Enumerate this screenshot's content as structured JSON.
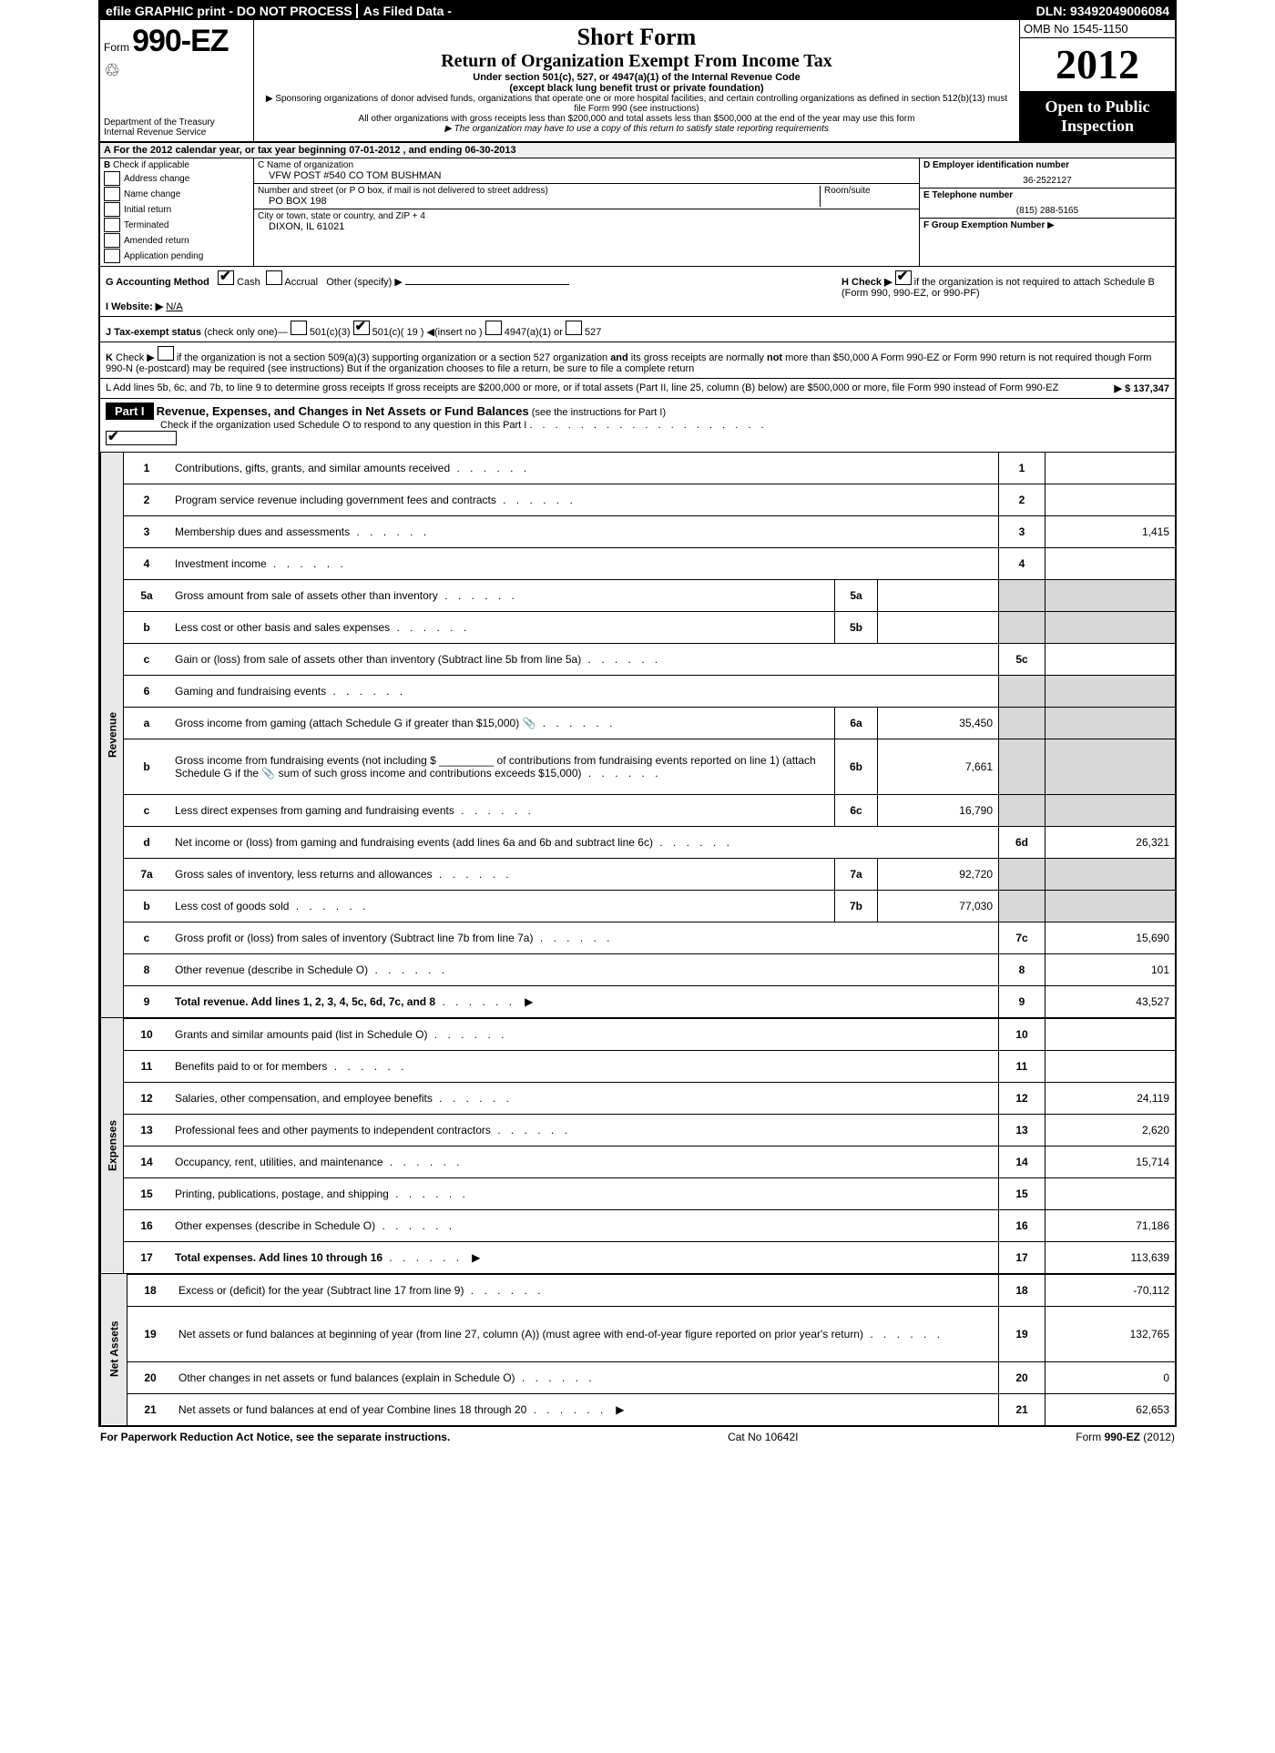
{
  "topbar": {
    "efile": "efile GRAPHIC print - DO NOT PROCESS",
    "asfiled": "As Filed Data -",
    "dln": "DLN: 93492049006084"
  },
  "header": {
    "form_prefix": "Form",
    "form_number": "990-EZ",
    "dept1": "Department of the Treasury",
    "dept2": "Internal Revenue Service",
    "short_form": "Short Form",
    "return_title": "Return of Organization Exempt From Income Tax",
    "sub1": "Under section 501(c), 527, or 4947(a)(1) of the Internal Revenue Code",
    "sub2": "(except black lung benefit trust or private foundation)",
    "sponsor_line": "▶ Sponsoring organizations of donor advised funds, organizations that operate one or more hospital facilities, and certain controlling organizations as defined in section 512(b)(13) must file Form 990 (see instructions)",
    "other_orgs": "All other organizations with gross receipts less than $200,000 and total assets less than $500,000 at the end of the year may use this form",
    "copy_note": "▶ The organization may have to use a copy of this return to satisfy state reporting requirements",
    "omb": "OMB No  1545-1150",
    "year": "2012",
    "open_public": "Open to Public Inspection"
  },
  "section_a": {
    "text_pre": "A  For the 2012 calendar year, or tax year beginning ",
    "begin": "07-01-2012",
    "text_mid": "              , and ending ",
    "end": "06-30-2013"
  },
  "col_b": {
    "title": "B",
    "check_if": "Check if applicable",
    "items": [
      "Address change",
      "Name change",
      "Initial return",
      "Terminated",
      "Amended return",
      "Application pending"
    ]
  },
  "col_c": {
    "c_label": "C Name of organization",
    "c_value": "VFW POST #540 CO TOM BUSHMAN",
    "street_label": "Number and street (or P  O  box, if mail is not delivered to street address)",
    "room_label": "Room/suite",
    "street_value": "PO BOX 198",
    "city_label": "City or town, state or country, and ZIP + 4",
    "city_value": "DIXON, IL  61021"
  },
  "col_def": {
    "d_label": "D Employer identification number",
    "d_value": "36-2522127",
    "e_label": "E Telephone number",
    "e_value": "(815) 288-5165",
    "f_label": "F Group Exemption Number",
    "f_arrow": "▶"
  },
  "row_g": {
    "g_label": "G Accounting Method",
    "cash": "Cash",
    "accrual": "Accrual",
    "other": "Other (specify) ▶",
    "h_text": "H  Check ▶",
    "h_rest": "if the organization is not required to attach Schedule B (Form 990, 990-EZ, or 990-PF)"
  },
  "row_i": {
    "label": "I Website: ▶",
    "value": "N/A"
  },
  "row_j": {
    "label": "J Tax-exempt status",
    "paren": "(check only one)—",
    "o1": "501(c)(3)",
    "o2": "501(c)( 19 )",
    "insert": "◀(insert no )",
    "o3": "4947(a)(1) or",
    "o4": "527"
  },
  "row_k": {
    "text": "K Check ▶  if the organization is not a section 509(a)(3) supporting organization or a section 527 organization and its gross receipts are normally not more than $50,000  A Form 990-EZ or Form 990 return is not required though Form 990-N (e-postcard) may be required (see instructions)  But if the organization chooses to file a return, be sure to file a complete return"
  },
  "row_l": {
    "text": "L Add lines 5b, 6c, and 7b, to line 9 to determine gross receipts  If gross receipts are $200,000 or more, or if total assets (Part II, line 25, column (B) below) are $500,000 or more, file Form 990 instead of Form 990-EZ",
    "amount": "▶ $ 137,347"
  },
  "part1": {
    "label": "Part I",
    "title": "Revenue, Expenses, and Changes in Net Assets or Fund Balances",
    "instr": "(see the instructions for Part I)",
    "check": "Check if the organization used Schedule O to respond to any question in this Part I"
  },
  "side_labels": {
    "revenue": "Revenue",
    "expenses": "Expenses",
    "netassets": "Net Assets"
  },
  "lines": [
    {
      "n": "1",
      "desc": "Contributions, gifts, grants, and similar amounts received",
      "rn": "1",
      "rv": ""
    },
    {
      "n": "2",
      "desc": "Program service revenue including government fees and contracts",
      "rn": "2",
      "rv": ""
    },
    {
      "n": "3",
      "desc": "Membership dues and assessments",
      "rn": "3",
      "rv": "1,415"
    },
    {
      "n": "4",
      "desc": "Investment income",
      "rn": "4",
      "rv": ""
    },
    {
      "n": "5a",
      "desc": "Gross amount from sale of assets other than inventory",
      "sn": "5a",
      "sv": "",
      "shaded": true
    },
    {
      "n": "b",
      "desc": "Less  cost or other basis and sales expenses",
      "sn": "5b",
      "sv": "",
      "shaded": true
    },
    {
      "n": "c",
      "desc": "Gain or (loss) from sale of assets other than inventory (Subtract line 5b from line 5a)",
      "rn": "5c",
      "rv": ""
    },
    {
      "n": "6",
      "desc": "Gaming and fundraising events",
      "shaded_right": true
    },
    {
      "n": "a",
      "desc": "Gross income from gaming (attach Schedule G if greater than $15,000) 📎",
      "sn": "6a",
      "sv": "35,450",
      "shaded": true
    },
    {
      "n": "b",
      "desc": "Gross income from fundraising events (not including $ _________ of contributions from fundraising events reported on line 1) (attach Schedule G if the 📎 sum of such gross income and contributions exceeds $15,000)",
      "sn": "6b",
      "sv": "7,661",
      "shaded": true,
      "tall": true
    },
    {
      "n": "c",
      "desc": "Less  direct expenses from gaming and fundraising events",
      "sn": "6c",
      "sv": "16,790",
      "shaded": true
    },
    {
      "n": "d",
      "desc": "Net income or (loss) from gaming and fundraising events (add lines 6a and 6b and subtract line 6c)",
      "rn": "6d",
      "rv": "26,321"
    },
    {
      "n": "7a",
      "desc": "Gross sales of inventory, less returns and allowances",
      "sn": "7a",
      "sv": "92,720",
      "shaded": true
    },
    {
      "n": "b",
      "desc": "Less  cost of goods sold",
      "sn": "7b",
      "sv": "77,030",
      "shaded": true
    },
    {
      "n": "c",
      "desc": "Gross profit or (loss) from sales of inventory (Subtract line 7b from line 7a)",
      "rn": "7c",
      "rv": "15,690"
    },
    {
      "n": "8",
      "desc": "Other revenue (describe in Schedule O)",
      "rn": "8",
      "rv": "101"
    },
    {
      "n": "9",
      "desc": "Total revenue. Add lines 1, 2, 3, 4, 5c, 6d, 7c, and 8",
      "rn": "9",
      "rv": "43,527",
      "bold": true,
      "arrow": true
    }
  ],
  "exp_lines": [
    {
      "n": "10",
      "desc": "Grants and similar amounts paid (list in Schedule O)",
      "rn": "10",
      "rv": ""
    },
    {
      "n": "11",
      "desc": "Benefits paid to or for members",
      "rn": "11",
      "rv": ""
    },
    {
      "n": "12",
      "desc": "Salaries, other compensation, and employee benefits",
      "rn": "12",
      "rv": "24,119"
    },
    {
      "n": "13",
      "desc": "Professional fees and other payments to independent contractors",
      "rn": "13",
      "rv": "2,620"
    },
    {
      "n": "14",
      "desc": "Occupancy, rent, utilities, and maintenance",
      "rn": "14",
      "rv": "15,714"
    },
    {
      "n": "15",
      "desc": "Printing, publications, postage, and shipping",
      "rn": "15",
      "rv": ""
    },
    {
      "n": "16",
      "desc": "Other expenses (describe in Schedule O)",
      "rn": "16",
      "rv": "71,186"
    },
    {
      "n": "17",
      "desc": "Total expenses. Add lines 10 through 16",
      "rn": "17",
      "rv": "113,639",
      "bold": true,
      "arrow": true
    }
  ],
  "net_lines": [
    {
      "n": "18",
      "desc": "Excess or (deficit) for the year (Subtract line 17 from line 9)",
      "rn": "18",
      "rv": "-70,112"
    },
    {
      "n": "19",
      "desc": "Net assets or fund balances at beginning of year (from line 27, column (A)) (must agree with end-of-year figure reported on prior year's return)",
      "rn": "19",
      "rv": "132,765",
      "tall": true
    },
    {
      "n": "20",
      "desc": "Other changes in net assets or fund balances (explain in Schedule O)",
      "rn": "20",
      "rv": "0"
    },
    {
      "n": "21",
      "desc": "Net assets or fund balances at end of year  Combine lines 18 through 20",
      "rn": "21",
      "rv": "62,653",
      "arrow": true
    }
  ],
  "footer": {
    "left": "For Paperwork Reduction Act Notice, see the separate instructions.",
    "center": "Cat No  10642I",
    "right_pre": "Form ",
    "right_bold": "990-EZ",
    "right_post": " (2012)"
  }
}
